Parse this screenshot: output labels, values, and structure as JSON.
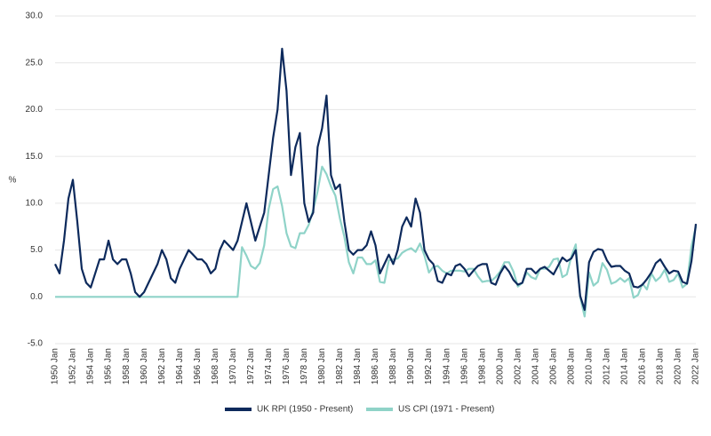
{
  "chart_data": {
    "type": "line",
    "y_label": "%",
    "categories": [
      "1950 Jan",
      null,
      null,
      null,
      "1952 Jan",
      null,
      null,
      null,
      "1954 Jan",
      null,
      null,
      null,
      "1956 Jan",
      null,
      null,
      null,
      "1958 Jan",
      null,
      null,
      null,
      "1960 Jan",
      null,
      null,
      null,
      "1962 Jan",
      null,
      null,
      null,
      "1964 Jan",
      null,
      null,
      null,
      "1966 Jan",
      null,
      null,
      null,
      "1968 Jan",
      null,
      null,
      null,
      "1970 Jan",
      null,
      null,
      null,
      "1972 Jan",
      null,
      null,
      null,
      "1974 Jan",
      null,
      null,
      null,
      "1976 Jan",
      null,
      null,
      null,
      "1978 Jan",
      null,
      null,
      null,
      "1980 Jan",
      null,
      null,
      null,
      "1982 Jan",
      null,
      null,
      null,
      "1984 Jan",
      null,
      null,
      null,
      "1986 Jan",
      null,
      null,
      null,
      "1988 Jan",
      null,
      null,
      null,
      "1990 Jan",
      null,
      null,
      null,
      "1992 Jan",
      null,
      null,
      null,
      "1994 Jan",
      null,
      null,
      null,
      "1996 Jan",
      null,
      null,
      null,
      "1998 Jan",
      null,
      null,
      null,
      "2000 Jan",
      null,
      null,
      null,
      "2002 Jan",
      null,
      null,
      null,
      "2004 Jan",
      null,
      null,
      null,
      "2006 Jan",
      null,
      null,
      null,
      "2008 Jan",
      null,
      null,
      null,
      "2010 Jan",
      null,
      null,
      null,
      "2012 Jan",
      null,
      null,
      null,
      "2014 Jan",
      null,
      null,
      null,
      "2016 Jan",
      null,
      null,
      null,
      "2018 Jan",
      null,
      null,
      null,
      "2020 Jan",
      null,
      null,
      null,
      "2022 Jan"
    ],
    "series": [
      {
        "name": "UK RPI (1950 - Present)",
        "color": "#0d2a5c",
        "values": [
          3.5,
          2.5,
          6,
          10.5,
          12.5,
          8,
          3,
          1.5,
          1,
          2.5,
          4,
          4,
          6,
          4,
          3.5,
          4,
          4,
          2.5,
          0.5,
          0,
          0.5,
          1.5,
          2.5,
          3.5,
          5,
          4,
          2,
          1.5,
          3,
          4,
          5,
          4.5,
          4,
          4,
          3.5,
          2.5,
          3,
          5,
          6,
          5.5,
          5,
          6,
          8,
          10,
          8,
          6,
          7.5,
          9,
          13,
          17,
          20,
          26.5,
          22,
          13,
          16,
          17.5,
          10,
          8,
          9,
          16,
          18,
          21.5,
          13,
          11.5,
          12,
          8,
          5,
          4.5,
          5,
          5,
          5.5,
          7,
          5.5,
          2.5,
          3.5,
          4.5,
          3.5,
          5,
          7.5,
          8.5,
          7.5,
          10.5,
          9,
          5,
          4,
          3.5,
          1.7,
          1.5,
          2.5,
          2.3,
          3.3,
          3.5,
          3,
          2.2,
          2.8,
          3.3,
          3.5,
          3.5,
          1.5,
          1.3,
          2.5,
          3.3,
          2.7,
          1.8,
          1.3,
          1.5,
          3,
          3,
          2.5,
          3,
          3.2,
          2.8,
          2.4,
          3.3,
          4.2,
          3.8,
          4.1,
          5,
          0.1,
          -1.4,
          3.7,
          4.8,
          5.1,
          5,
          3.9,
          3.2,
          3.3,
          3.3,
          2.8,
          2.5,
          1.1,
          1,
          1.3,
          1.9,
          2.6,
          3.6,
          4,
          3.2,
          2.5,
          2.8,
          2.7,
          1.6,
          1.4,
          3.8,
          7.8
        ]
      },
      {
        "name": "US CPI (1971 - Present)",
        "color": "#8fd3c8",
        "values": [
          0,
          0,
          0,
          0,
          0,
          0,
          0,
          0,
          0,
          0,
          0,
          0,
          0,
          0,
          0,
          0,
          0,
          0,
          0,
          0,
          0,
          0,
          0,
          0,
          0,
          0,
          0,
          0,
          0,
          0,
          0,
          0,
          0,
          0,
          0,
          0,
          0,
          0,
          0,
          0,
          0,
          0,
          5.3,
          4.4,
          3.3,
          3,
          3.6,
          5.5,
          9.4,
          11.5,
          11.8,
          9.7,
          6.8,
          5.4,
          5.2,
          6.8,
          6.8,
          7.7,
          9.3,
          11.3,
          13.9,
          13.1,
          11.8,
          10.8,
          8.4,
          6.4,
          3.7,
          2.5,
          4.2,
          4.2,
          3.5,
          3.5,
          3.9,
          1.6,
          1.5,
          3.9,
          4,
          4.1,
          4.7,
          5,
          5.2,
          4.8,
          5.7,
          4.4,
          2.6,
          3.2,
          3.3,
          2.8,
          2.5,
          2.8,
          2.8,
          2.8,
          2.7,
          3,
          3,
          2.2,
          1.6,
          1.7,
          1.7,
          2.1,
          2.7,
          3.7,
          3.7,
          2.7,
          1.1,
          1.5,
          2.6,
          2.1,
          1.9,
          3,
          3,
          3.2,
          4,
          4.1,
          2.1,
          2.4,
          4.3,
          5.6,
          0,
          -2.1,
          2.6,
          1.2,
          1.6,
          3.6,
          2.9,
          1.4,
          1.6,
          2,
          1.6,
          2,
          -0.1,
          0.2,
          1.4,
          0.8,
          2.5,
          1.7,
          2.1,
          2.9,
          1.6,
          1.8,
          2.5,
          1,
          1.4,
          5.4,
          7.5
        ]
      }
    ],
    "ylim": [
      -5,
      30
    ],
    "yticks": [
      {
        "value": -5,
        "label": "-5.0"
      },
      {
        "value": 0,
        "label": "0.0"
      },
      {
        "value": 5,
        "label": "5.0"
      },
      {
        "value": 10,
        "label": "10.0"
      },
      {
        "value": 15,
        "label": "15.0"
      },
      {
        "value": 20,
        "label": "20.0"
      },
      {
        "value": 25,
        "label": "25.0"
      },
      {
        "value": 30,
        "label": "30.0"
      }
    ],
    "grid": true,
    "legend": "bottom"
  }
}
